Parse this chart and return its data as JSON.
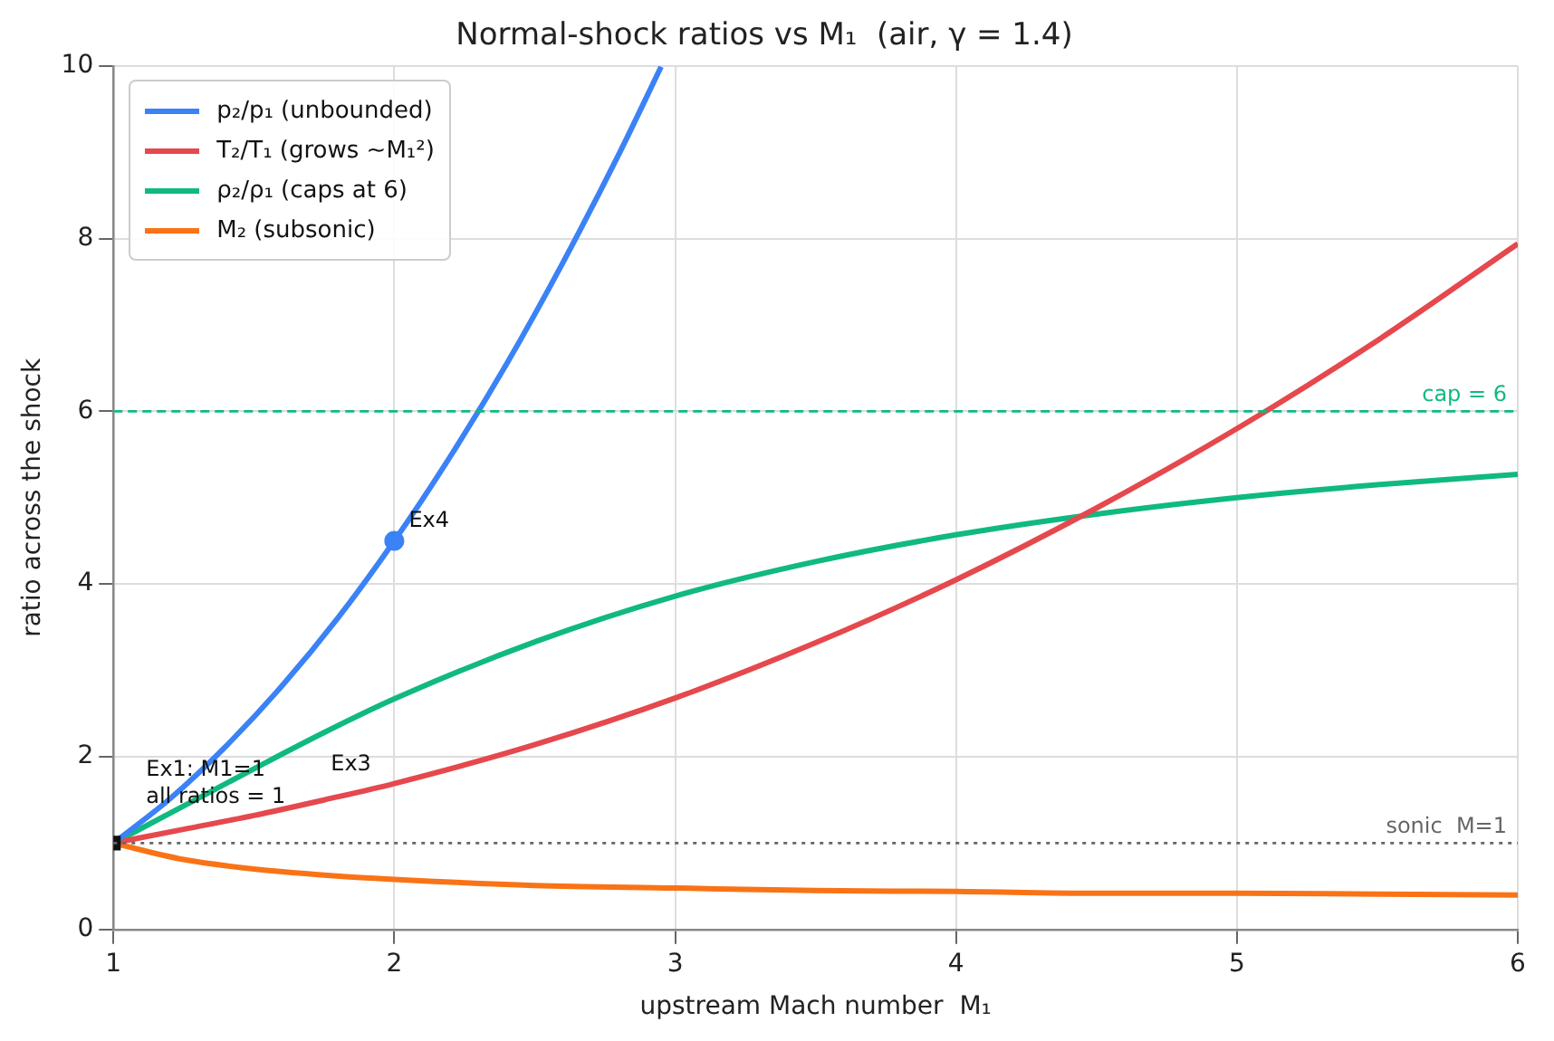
{
  "chart_data": {
    "type": "line",
    "title": "Normal-shock ratios vs M₁  (air, γ = 1.4)",
    "xlabel": "upstream Mach number  M₁",
    "ylabel": "ratio across the shock",
    "x": [
      1,
      1.25,
      1.5,
      1.75,
      2,
      2.5,
      3,
      3.5,
      4,
      4.5,
      5,
      5.5,
      6
    ],
    "series": [
      {
        "name": "p₂/p₁  (unbounded)",
        "color": "#3b82f6",
        "x": [
          1,
          1.2,
          1.4,
          1.6,
          1.8,
          2,
          2.2,
          2.4,
          2.6,
          2.8,
          2.95
        ],
        "values": [
          1,
          1.51,
          2.12,
          2.82,
          3.61,
          4.5,
          5.48,
          6.55,
          7.72,
          8.98,
          9.99
        ]
      },
      {
        "name": "T₂/T₁  (grows ~M₁²)",
        "color": "#e5484d",
        "values": [
          1,
          1.16,
          1.32,
          1.5,
          1.69,
          2.14,
          2.68,
          3.32,
          4.05,
          4.88,
          5.8,
          6.82,
          7.94
        ]
      },
      {
        "name": "ρ₂/ρ₁  (caps at 6)",
        "color": "#10b981",
        "values": [
          1,
          1.43,
          1.86,
          2.28,
          2.67,
          3.33,
          3.86,
          4.26,
          4.57,
          4.81,
          5,
          5.15,
          5.27
        ]
      },
      {
        "name": "M₂  (subsonic)",
        "color": "#f97316",
        "values": [
          1,
          0.81,
          0.7,
          0.63,
          0.58,
          0.51,
          0.48,
          0.45,
          0.44,
          0.42,
          0.42,
          0.41,
          0.4
        ]
      },
      {
        "type": "scatter",
        "color": "#3b82f6",
        "marker": "circle",
        "x": [
          2
        ],
        "values": [
          4.5
        ]
      },
      {
        "type": "scatter",
        "color": "#111111",
        "marker": "square",
        "x": [
          1
        ],
        "values": [
          1
        ]
      }
    ],
    "xlim": [
      1,
      6
    ],
    "ylim": [
      0,
      10
    ],
    "xticks": [
      1,
      2,
      3,
      4,
      5,
      6
    ],
    "yticks": [
      0,
      2,
      4,
      6,
      8,
      10
    ],
    "grid": true,
    "legend": "top left",
    "ref_lines": [
      {
        "axis": "y",
        "value": 6,
        "label": "cap = 6",
        "color": "#10b981",
        "line_style": "dashed"
      },
      {
        "axis": "y",
        "value": 1,
        "label": "sonic  M=1",
        "color": "#666666",
        "line_style": "dotted"
      }
    ],
    "annotations": [
      {
        "text": "Ex1: M1=1\nall ratios = 1",
        "x": 1,
        "y": 1
      },
      "Ex3",
      {
        "text": "Ex4",
        "x": 2,
        "y": 4.5
      }
    ]
  }
}
